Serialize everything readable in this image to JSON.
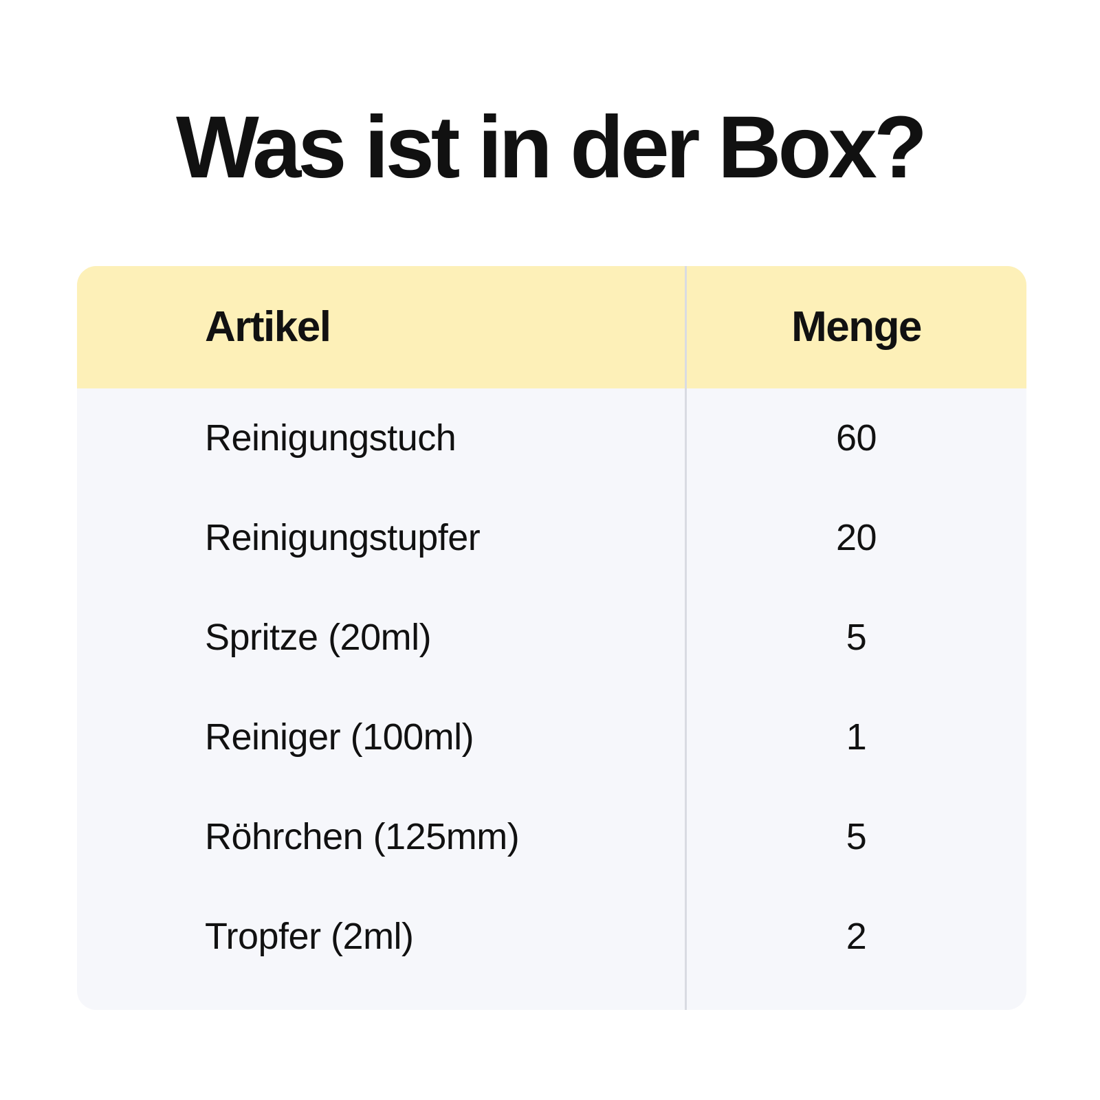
{
  "title": "Was ist in der Box?",
  "colors": {
    "header_background": "#fdf0b8",
    "body_background": "#f6f7fb",
    "divider": "#d9dbe2",
    "text": "#111111"
  },
  "table": {
    "headers": {
      "item": "Artikel",
      "quantity": "Menge"
    },
    "rows": [
      {
        "item": "Reinigungstuch",
        "quantity": "60"
      },
      {
        "item": "Reinigungstupfer",
        "quantity": "20"
      },
      {
        "item": "Spritze (20ml)",
        "quantity": "5"
      },
      {
        "item": "Reiniger (100ml)",
        "quantity": "1"
      },
      {
        "item": "Röhrchen (125mm)",
        "quantity": "5"
      },
      {
        "item": "Tropfer (2ml)",
        "quantity": "2"
      }
    ]
  }
}
